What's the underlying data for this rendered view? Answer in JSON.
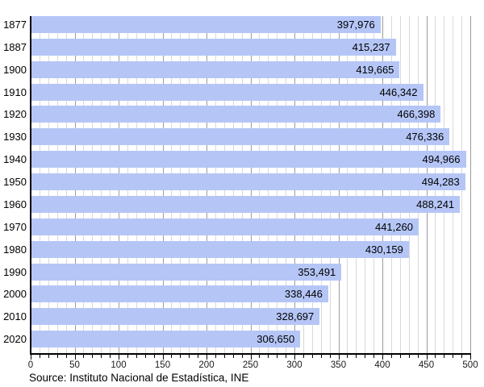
{
  "chart_data": {
    "type": "bar",
    "orientation": "horizontal",
    "categories": [
      "1877",
      "1887",
      "1900",
      "1910",
      "1920",
      "1930",
      "1940",
      "1950",
      "1960",
      "1970",
      "1980",
      "1990",
      "2000",
      "2010",
      "2020"
    ],
    "values": [
      397976,
      415237,
      419665,
      446342,
      466398,
      476336,
      494966,
      494283,
      488241,
      441260,
      430159,
      353491,
      338446,
      328697,
      306650
    ],
    "value_labels": [
      "397,976",
      "415,237",
      "419,665",
      "446,342",
      "466,398",
      "476,336",
      "494,966",
      "494,283",
      "488,241",
      "441,260",
      "430,159",
      "353,491",
      "338,446",
      "328,697",
      "306,650"
    ],
    "x_axis": {
      "min": 0,
      "max": 500,
      "minor_step": 10,
      "major_step": 50,
      "tick_labels": [
        "0",
        "50",
        "100",
        "150",
        "200",
        "250",
        "300",
        "350",
        "400",
        "450",
        "500"
      ],
      "scale_of_values": "thousands"
    },
    "grid": "on",
    "legend": "none",
    "title": "",
    "source_note": "Source: Instituto Nacional de Estadística, INE",
    "colors": {
      "bar_fill": "#b5c6f6",
      "minor_gridline": "#d9d9d9",
      "major_gridline": "#9c9c9c",
      "axis": "#000000",
      "tick": "#000000",
      "label_text": "#000000"
    }
  }
}
